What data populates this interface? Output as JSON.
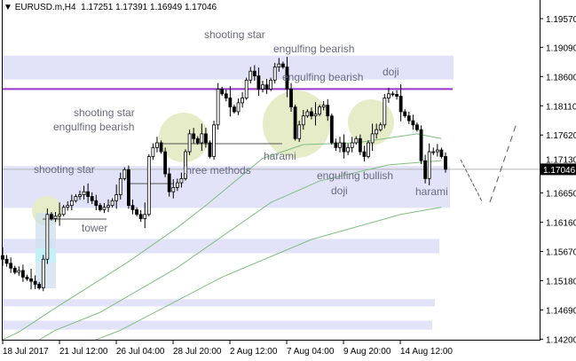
{
  "header": {
    "symbol": "EURUSD.m,H4",
    "open": "1.17251",
    "high": "1.17391",
    "low": "1.16949",
    "close": "1.17046"
  },
  "colors": {
    "zone": "#e2e2f8",
    "pattern_circle": "#e6ecc8",
    "resistance_line": "#9933cc",
    "moving_average": "#7fbf7f",
    "bullish_candle": "#ffffff",
    "bearish_candle": "#000000",
    "current_price_line": "#b4b4b4"
  },
  "chart_data": {
    "type": "candlestick",
    "symbol": "EURUSD.m",
    "timeframe": "H4",
    "y_ticks": [
      "1.19570",
      "1.19090",
      "1.18600",
      "1.18110",
      "1.17620",
      "1.17130",
      "1.16650",
      "1.16160",
      "1.15670",
      "1.15180",
      "1.14690",
      "1.14200"
    ],
    "x_ticks": [
      "18 Jul 2017",
      "21 Jul 12:00",
      "26 Jul 04:00",
      "28 Jul 20:00",
      "2 Aug 12:00",
      "7 Aug 04:00",
      "9 Aug 20:00",
      "14 Aug 12:00"
    ],
    "current_price": "1.17046",
    "ylim": [
      1.1415,
      1.199
    ],
    "grid": false,
    "closes": [
      1.1554,
      1.1547,
      1.1539,
      1.1532,
      1.1535,
      1.1524,
      1.1521,
      1.1517,
      1.1512,
      1.1506,
      1.1554,
      1.1629,
      1.1622,
      1.1626,
      1.1629,
      1.1641,
      1.1644,
      1.1652,
      1.1659,
      1.1662,
      1.1667,
      1.1659,
      1.1652,
      1.1644,
      1.1637,
      1.1641,
      1.1644,
      1.1652,
      1.1662,
      1.1689,
      1.1704,
      1.1644,
      1.1637,
      1.1629,
      1.1622,
      1.1629,
      1.1726,
      1.1741,
      1.1749,
      1.1734,
      1.1697,
      1.1667,
      1.1674,
      1.1682,
      1.1689,
      1.1734,
      1.1764,
      1.1756,
      1.1749,
      1.1764,
      1.1749,
      1.1726,
      1.1779,
      1.1839,
      1.1831,
      1.1824,
      1.1809,
      1.1801,
      1.1816,
      1.1824,
      1.1854,
      1.1869,
      1.1861,
      1.1839,
      1.1846,
      1.1839,
      1.1854,
      1.1876,
      1.1881,
      1.1876,
      1.1839,
      1.1809,
      1.1756,
      1.1779,
      1.1794,
      1.1801,
      1.1794,
      1.1797,
      1.1809,
      1.1812,
      1.1794,
      1.1749,
      1.1741,
      1.1749,
      1.1734,
      1.1741,
      1.1749,
      1.1756,
      1.1734,
      1.1726,
      1.1749,
      1.1764,
      1.1771,
      1.1779,
      1.1824,
      1.1831,
      1.183,
      1.1827,
      1.1801,
      1.1794,
      1.1786,
      1.1779,
      1.1771,
      1.1719,
      1.1689,
      1.1734,
      1.1734,
      1.1737,
      1.1726,
      1.17046
    ],
    "moving_averages": [
      [
        [
          0,
          1.141
        ],
        [
          4,
          1.1432
        ],
        [
          12,
          1.1468
        ],
        [
          31,
          1.155
        ],
        [
          43,
          1.1607
        ],
        [
          50,
          1.1644
        ],
        [
          64,
          1.1723
        ],
        [
          74,
          1.1746
        ],
        [
          87,
          1.1749
        ],
        [
          102,
          1.1764
        ],
        [
          108,
          1.1756
        ]
      ],
      [
        [
          9,
          1.141
        ],
        [
          13,
          1.1435
        ],
        [
          24,
          1.1465
        ],
        [
          43,
          1.154
        ],
        [
          66,
          1.1649
        ],
        [
          78,
          1.1685
        ],
        [
          95,
          1.1712
        ],
        [
          108,
          1.1719
        ]
      ],
      [
        [
          23,
          1.141
        ],
        [
          29,
          1.1435
        ],
        [
          54,
          1.1524
        ],
        [
          76,
          1.1587
        ],
        [
          98,
          1.1629
        ],
        [
          108,
          1.1641
        ]
      ]
    ],
    "resistance_level": 1.1839,
    "zones": [
      [
        1.1855,
        1.1895
      ],
      [
        1.164,
        1.171
      ],
      [
        1.1564,
        1.1588
      ],
      [
        1.1475,
        1.1487
      ],
      [
        1.1436,
        1.1451
      ]
    ],
    "annotations": [
      {
        "text": "shooting star"
      },
      {
        "text": "engulfing bearish"
      },
      {
        "text": "engulfing bearish"
      },
      {
        "text": "doji"
      },
      {
        "text": "shooting star"
      },
      {
        "text": "engulfing bearish"
      },
      {
        "text": "shooting star"
      },
      {
        "text": "three methods"
      },
      {
        "text": "harami"
      },
      {
        "text": "engulfing bullish"
      },
      {
        "text": "doji"
      },
      {
        "text": "harami"
      },
      {
        "text": "tower"
      }
    ]
  }
}
